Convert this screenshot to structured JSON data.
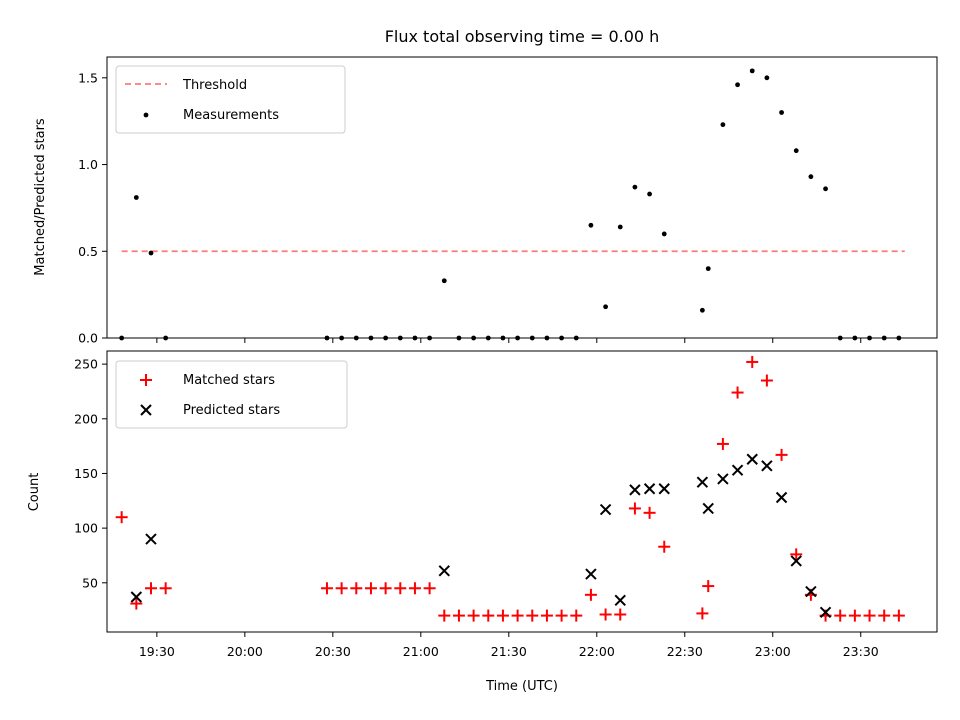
{
  "chart_data": [
    {
      "type": "scatter",
      "title": "Flux total observing time = 0.00 h",
      "xlabel": "",
      "ylabel": "Matched/Predicted stars",
      "ylim": [
        0,
        1.62
      ],
      "yticks": [
        0.0,
        0.5,
        1.0,
        1.5
      ],
      "legend": "top-left",
      "threshold": {
        "name": "Threshold",
        "value": 0.5,
        "x_range": [
          "19:18",
          "23:45"
        ],
        "color": "#ff7a7a",
        "style": "dashed"
      },
      "series": [
        {
          "name": "Measurements",
          "color": "#000000",
          "marker": "dot",
          "x": [
            "19:18",
            "19:23",
            "19:28",
            "19:33",
            "20:28",
            "20:33",
            "20:38",
            "20:43",
            "20:48",
            "20:53",
            "20:58",
            "21:03",
            "21:08",
            "21:13",
            "21:18",
            "21:23",
            "21:28",
            "21:33",
            "21:38",
            "21:43",
            "21:48",
            "21:53",
            "21:58",
            "22:03",
            "22:08",
            "22:13",
            "22:18",
            "22:23",
            "22:36",
            "22:38",
            "22:43",
            "22:48",
            "22:53",
            "22:58",
            "23:03",
            "23:08",
            "23:13",
            "23:18",
            "23:23",
            "23:28",
            "23:33",
            "23:38",
            "23:43"
          ],
          "y": [
            0.0,
            0.81,
            0.49,
            0.0,
            0.0,
            0.0,
            0.0,
            0.0,
            0.0,
            0.0,
            0.0,
            0.0,
            0.33,
            0.0,
            0.0,
            0.0,
            0.0,
            0.0,
            0.0,
            0.0,
            0.0,
            0.0,
            0.65,
            0.18,
            0.64,
            0.87,
            0.83,
            0.6,
            0.16,
            0.4,
            1.23,
            1.46,
            1.54,
            1.5,
            1.3,
            1.08,
            0.93,
            0.86,
            0.0,
            0.0,
            0.0,
            0.0,
            0.0
          ]
        }
      ]
    },
    {
      "type": "scatter",
      "title": "",
      "xlabel": "Time (UTC)",
      "ylabel": "Count",
      "ylim": [
        5,
        262
      ],
      "yticks": [
        50,
        100,
        150,
        200,
        250
      ],
      "xlim": [
        "19:13",
        "23:56"
      ],
      "xticks": [
        "19:30",
        "20:00",
        "20:30",
        "21:00",
        "21:30",
        "22:00",
        "22:30",
        "23:00",
        "23:30"
      ],
      "legend": "top-left",
      "series": [
        {
          "name": "Matched stars",
          "color": "#ff0000",
          "marker": "plus",
          "x": [
            "19:18",
            "19:23",
            "19:28",
            "19:33",
            "20:28",
            "20:33",
            "20:38",
            "20:43",
            "20:48",
            "20:53",
            "20:58",
            "21:03",
            "21:08",
            "21:13",
            "21:18",
            "21:23",
            "21:28",
            "21:33",
            "21:38",
            "21:43",
            "21:48",
            "21:53",
            "21:58",
            "22:03",
            "22:08",
            "22:13",
            "22:18",
            "22:23",
            "22:36",
            "22:38",
            "22:43",
            "22:48",
            "22:53",
            "22:58",
            "23:03",
            "23:08",
            "23:13",
            "23:18",
            "23:23",
            "23:28",
            "23:33",
            "23:38",
            "23:43"
          ],
          "y": [
            110,
            31,
            45,
            45,
            45,
            45,
            45,
            45,
            45,
            45,
            45,
            45,
            20,
            20,
            20,
            20,
            20,
            20,
            20,
            20,
            20,
            20,
            39,
            21,
            21,
            118,
            114,
            83,
            22,
            47,
            177,
            224,
            252,
            235,
            167,
            76,
            39,
            20,
            20,
            20,
            20,
            20,
            20
          ]
        },
        {
          "name": "Predicted stars",
          "color": "#000000",
          "marker": "x",
          "x": [
            "19:23",
            "19:28",
            "21:08",
            "21:58",
            "22:03",
            "22:08",
            "22:13",
            "22:18",
            "22:23",
            "22:36",
            "22:38",
            "22:43",
            "22:48",
            "22:53",
            "22:58",
            "23:03",
            "23:08",
            "23:13",
            "23:18"
          ],
          "y": [
            37,
            90,
            61,
            58,
            117,
            34,
            135,
            136,
            136,
            142,
            118,
            145,
            153,
            163,
            157,
            128,
            70,
            42,
            23
          ]
        }
      ]
    }
  ]
}
